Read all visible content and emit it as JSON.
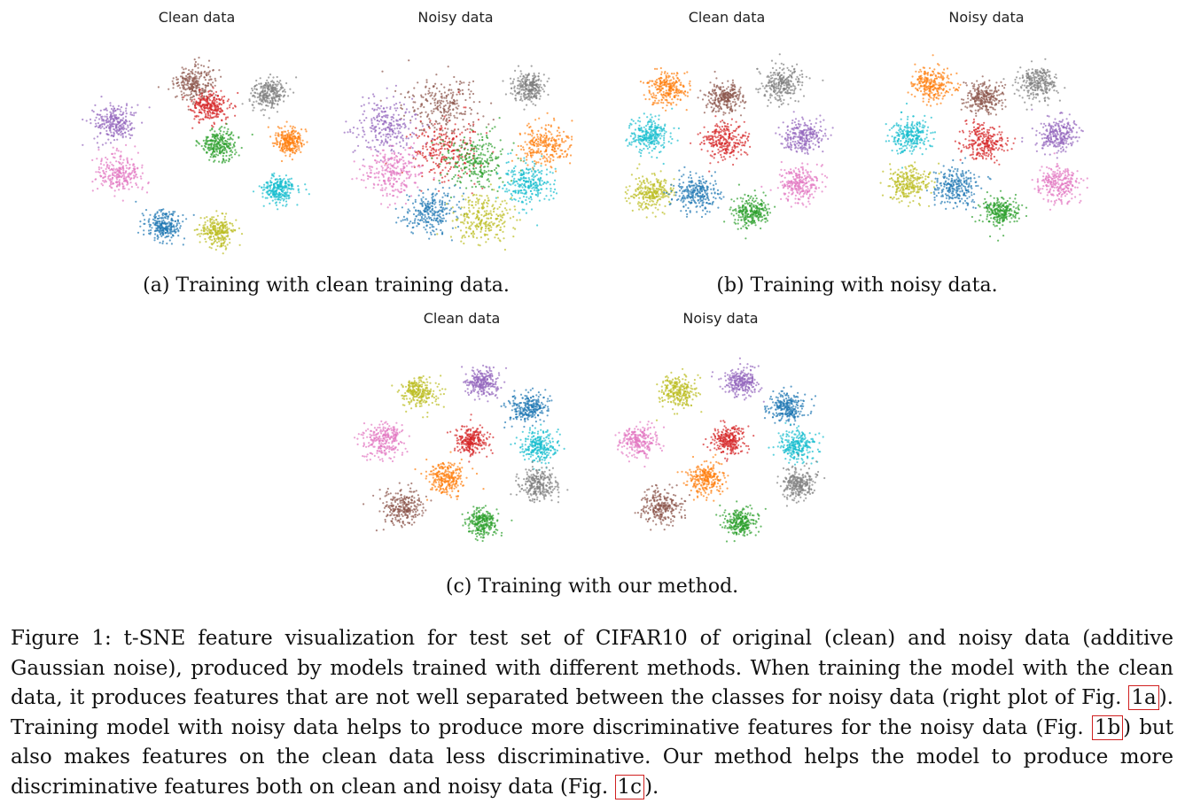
{
  "colors": {
    "orange": "#ff7f0e",
    "brown": "#8c564b",
    "gray": "#7f7f7f",
    "cyan": "#17becf",
    "red": "#d62728",
    "purple": "#9467bd",
    "olive": "#bcbd22",
    "blue": "#1f77b4",
    "pink": "#e377c2",
    "green": "#2ca02c",
    "ref_box": "#d02020"
  },
  "chart_data": [
    {
      "type": "scatter",
      "title": "Clean data",
      "panel": "a",
      "clusters": [
        {
          "color": "brown",
          "cx": 0.45,
          "cy": 0.82,
          "spread": 0.1
        },
        {
          "color": "red",
          "cx": 0.52,
          "cy": 0.7,
          "spread": 0.09
        },
        {
          "color": "gray",
          "cx": 0.78,
          "cy": 0.77,
          "spread": 0.09
        },
        {
          "color": "purple",
          "cx": 0.1,
          "cy": 0.62,
          "spread": 0.1
        },
        {
          "color": "green",
          "cx": 0.56,
          "cy": 0.5,
          "spread": 0.09
        },
        {
          "color": "orange",
          "cx": 0.87,
          "cy": 0.52,
          "spread": 0.07
        },
        {
          "color": "pink",
          "cx": 0.12,
          "cy": 0.35,
          "spread": 0.11
        },
        {
          "color": "cyan",
          "cx": 0.82,
          "cy": 0.27,
          "spread": 0.08
        },
        {
          "color": "blue",
          "cx": 0.32,
          "cy": 0.08,
          "spread": 0.09
        },
        {
          "color": "olive",
          "cx": 0.55,
          "cy": 0.05,
          "spread": 0.09
        }
      ]
    },
    {
      "type": "scatter",
      "title": "Noisy data",
      "panel": "a",
      "clusters": [
        {
          "color": "brown",
          "cx": 0.4,
          "cy": 0.7,
          "spread": 0.18
        },
        {
          "color": "gray",
          "cx": 0.78,
          "cy": 0.8,
          "spread": 0.08
        },
        {
          "color": "purple",
          "cx": 0.15,
          "cy": 0.6,
          "spread": 0.16
        },
        {
          "color": "red",
          "cx": 0.42,
          "cy": 0.48,
          "spread": 0.18
        },
        {
          "color": "green",
          "cx": 0.55,
          "cy": 0.42,
          "spread": 0.16
        },
        {
          "color": "orange",
          "cx": 0.85,
          "cy": 0.5,
          "spread": 0.12
        },
        {
          "color": "pink",
          "cx": 0.18,
          "cy": 0.35,
          "spread": 0.14
        },
        {
          "color": "cyan",
          "cx": 0.78,
          "cy": 0.3,
          "spread": 0.12
        },
        {
          "color": "blue",
          "cx": 0.35,
          "cy": 0.15,
          "spread": 0.13
        },
        {
          "color": "olive",
          "cx": 0.58,
          "cy": 0.12,
          "spread": 0.14
        }
      ]
    },
    {
      "type": "scatter",
      "title": "Clean data",
      "panel": "b",
      "clusters": [
        {
          "color": "orange",
          "cx": 0.2,
          "cy": 0.8,
          "spread": 0.1
        },
        {
          "color": "brown",
          "cx": 0.45,
          "cy": 0.75,
          "spread": 0.09
        },
        {
          "color": "gray",
          "cx": 0.7,
          "cy": 0.82,
          "spread": 0.1
        },
        {
          "color": "cyan",
          "cx": 0.12,
          "cy": 0.55,
          "spread": 0.1
        },
        {
          "color": "red",
          "cx": 0.45,
          "cy": 0.52,
          "spread": 0.11
        },
        {
          "color": "purple",
          "cx": 0.8,
          "cy": 0.55,
          "spread": 0.1
        },
        {
          "color": "olive",
          "cx": 0.13,
          "cy": 0.25,
          "spread": 0.1
        },
        {
          "color": "blue",
          "cx": 0.33,
          "cy": 0.25,
          "spread": 0.11
        },
        {
          "color": "pink",
          "cx": 0.78,
          "cy": 0.3,
          "spread": 0.1
        },
        {
          "color": "green",
          "cx": 0.57,
          "cy": 0.15,
          "spread": 0.09
        }
      ]
    },
    {
      "type": "scatter",
      "title": "Noisy data",
      "panel": "b",
      "clusters": [
        {
          "color": "orange",
          "cx": 0.22,
          "cy": 0.82,
          "spread": 0.1
        },
        {
          "color": "brown",
          "cx": 0.45,
          "cy": 0.75,
          "spread": 0.09
        },
        {
          "color": "gray",
          "cx": 0.68,
          "cy": 0.83,
          "spread": 0.1
        },
        {
          "color": "cyan",
          "cx": 0.12,
          "cy": 0.55,
          "spread": 0.1
        },
        {
          "color": "red",
          "cx": 0.45,
          "cy": 0.52,
          "spread": 0.11
        },
        {
          "color": "purple",
          "cx": 0.78,
          "cy": 0.55,
          "spread": 0.1
        },
        {
          "color": "olive",
          "cx": 0.12,
          "cy": 0.3,
          "spread": 0.1
        },
        {
          "color": "blue",
          "cx": 0.33,
          "cy": 0.28,
          "spread": 0.11
        },
        {
          "color": "pink",
          "cx": 0.78,
          "cy": 0.3,
          "spread": 0.1
        },
        {
          "color": "green",
          "cx": 0.52,
          "cy": 0.15,
          "spread": 0.09
        }
      ]
    },
    {
      "type": "scatter",
      "title": "Clean data",
      "panel": "c",
      "clusters": [
        {
          "color": "olive",
          "cx": 0.27,
          "cy": 0.8,
          "spread": 0.09
        },
        {
          "color": "purple",
          "cx": 0.55,
          "cy": 0.85,
          "spread": 0.08
        },
        {
          "color": "blue",
          "cx": 0.75,
          "cy": 0.72,
          "spread": 0.09
        },
        {
          "color": "pink",
          "cx": 0.12,
          "cy": 0.55,
          "spread": 0.1
        },
        {
          "color": "red",
          "cx": 0.5,
          "cy": 0.55,
          "spread": 0.08
        },
        {
          "color": "cyan",
          "cx": 0.8,
          "cy": 0.52,
          "spread": 0.09
        },
        {
          "color": "orange",
          "cx": 0.4,
          "cy": 0.35,
          "spread": 0.09
        },
        {
          "color": "gray",
          "cx": 0.8,
          "cy": 0.32,
          "spread": 0.09
        },
        {
          "color": "brown",
          "cx": 0.2,
          "cy": 0.2,
          "spread": 0.1
        },
        {
          "color": "green",
          "cx": 0.55,
          "cy": 0.12,
          "spread": 0.08
        }
      ]
    },
    {
      "type": "scatter",
      "title": "Noisy data",
      "panel": "c",
      "clusters": [
        {
          "color": "olive",
          "cx": 0.27,
          "cy": 0.8,
          "spread": 0.09
        },
        {
          "color": "purple",
          "cx": 0.55,
          "cy": 0.85,
          "spread": 0.08
        },
        {
          "color": "blue",
          "cx": 0.75,
          "cy": 0.72,
          "spread": 0.09
        },
        {
          "color": "pink",
          "cx": 0.1,
          "cy": 0.55,
          "spread": 0.09
        },
        {
          "color": "red",
          "cx": 0.5,
          "cy": 0.55,
          "spread": 0.08
        },
        {
          "color": "cyan",
          "cx": 0.8,
          "cy": 0.52,
          "spread": 0.09
        },
        {
          "color": "orange",
          "cx": 0.4,
          "cy": 0.35,
          "spread": 0.09
        },
        {
          "color": "gray",
          "cx": 0.8,
          "cy": 0.32,
          "spread": 0.09
        },
        {
          "color": "brown",
          "cx": 0.2,
          "cy": 0.2,
          "spread": 0.1
        },
        {
          "color": "green",
          "cx": 0.55,
          "cy": 0.12,
          "spread": 0.08
        }
      ]
    }
  ],
  "subcaptions": {
    "a": "(a) Training with clean training data.",
    "b": "(b) Training with noisy data.",
    "c": "(c) Training with our method."
  },
  "caption": {
    "p1": "Figure 1: t-SNE feature visualization for test set of CIFAR10 of original (clean) and noisy data (additive Gaussian noise), produced by models trained with different methods. When training the model with the clean data, it produces features that are not well separated between the classes for noisy data (right plot of Fig. ",
    "ref1": "1a",
    "p2": "). Training model with noisy data helps to produce more discriminative features for the noisy data (Fig. ",
    "ref2": "1b",
    "p3": ") but also makes features on the clean data less discriminative. Our method helps the model to produce more discriminative features both on clean and noisy data (Fig. ",
    "ref3": "1c",
    "p4": ")."
  }
}
